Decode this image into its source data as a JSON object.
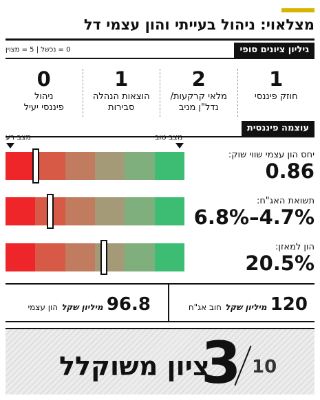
{
  "header": {
    "title": "מצלאוי: ניהול בעייתי והון עצמי דל",
    "accent_color": "#d8b400"
  },
  "final_scores": {
    "section_label": "גיליון ציונים סופי",
    "legend": "0 = נכשל | 5 = מצוין",
    "items": [
      {
        "score": "1",
        "label": "חוזק פיננסי"
      },
      {
        "score": "2",
        "label": "מלאי קרקעות/\nנדל\"ן מניב"
      },
      {
        "score": "1",
        "label": "הוצאות הנהלה\nסבירות"
      },
      {
        "score": "0",
        "label": "ניהול\nפיננסי יעיל"
      }
    ]
  },
  "financial_strength": {
    "section_label": "עוצמה פיננסית",
    "good_label": "מצב טוב",
    "bad_label": "מצב רע",
    "gauge_colors": [
      "#ee2629",
      "#d75a46",
      "#c17c5f",
      "#a59a77",
      "#7faf7c",
      "#3dbd74"
    ],
    "metrics": [
      {
        "label": "יחס הון עצמי שווי שוק:",
        "value": "0.86",
        "level": 0.83
      },
      {
        "label": "תשואת האג\"ח:",
        "value": "6.8%–4.7%",
        "level": 0.75
      },
      {
        "label": "הון למאזן:",
        "value": "20.5%",
        "level": 0.45
      }
    ]
  },
  "totals": {
    "debt": {
      "value": "120",
      "unit": "מיליון שקל",
      "label": "חוב אג\"ח"
    },
    "equity": {
      "value": "96.8",
      "unit": "מיליון שקל",
      "label": "הון עצמי"
    }
  },
  "weighted": {
    "label": "ציון משוקלל",
    "score": "3",
    "max": "10"
  }
}
